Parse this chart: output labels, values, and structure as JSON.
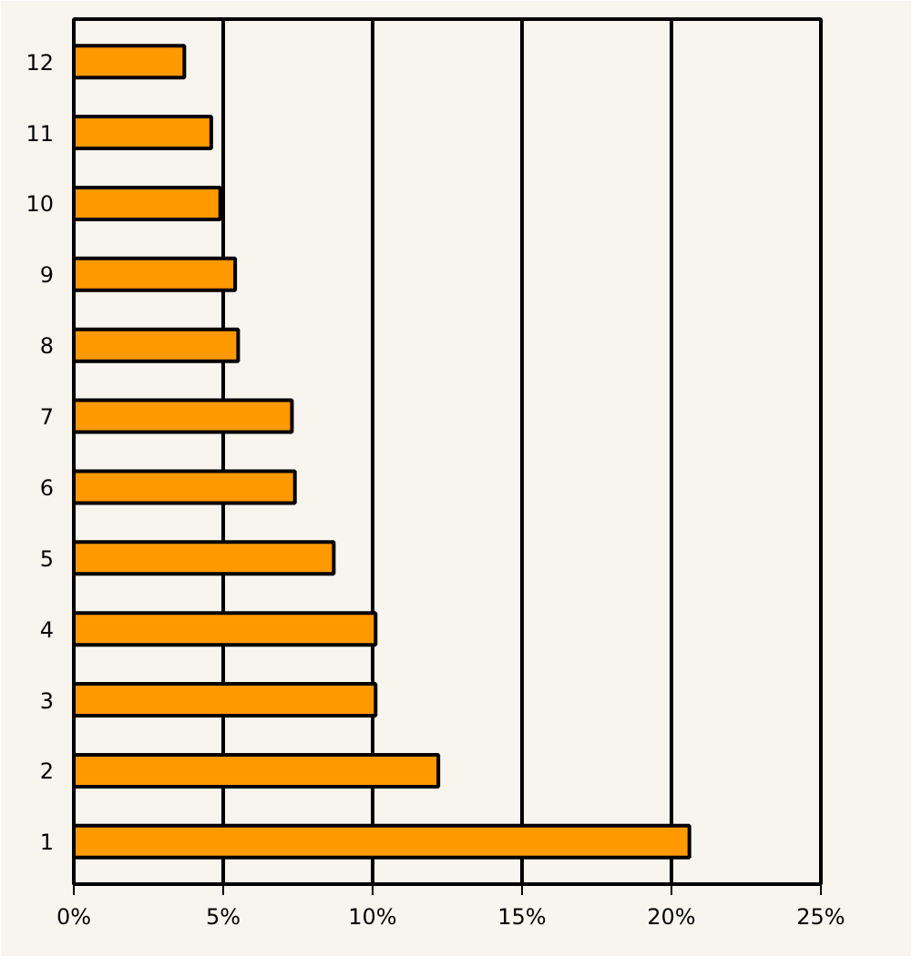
{
  "chart_data": {
    "type": "bar",
    "orientation": "horizontal",
    "categories": [
      "12",
      "11",
      "10",
      "9",
      "8",
      "7",
      "6",
      "5",
      "4",
      "3",
      "2",
      "1"
    ],
    "values": [
      3.7,
      4.6,
      4.9,
      5.4,
      5.5,
      7.3,
      7.4,
      8.7,
      10.1,
      10.1,
      12.2,
      20.6
    ],
    "color": "#ff9900",
    "xlim": [
      0,
      25
    ],
    "xticks": [
      {
        "value": 0,
        "label": "0%"
      },
      {
        "value": 5,
        "label": "5%"
      },
      {
        "value": 10,
        "label": "10%"
      },
      {
        "value": 15,
        "label": "15%"
      },
      {
        "value": 20,
        "label": "20%"
      },
      {
        "value": 25,
        "label": "25%"
      }
    ],
    "grid": "x"
  }
}
